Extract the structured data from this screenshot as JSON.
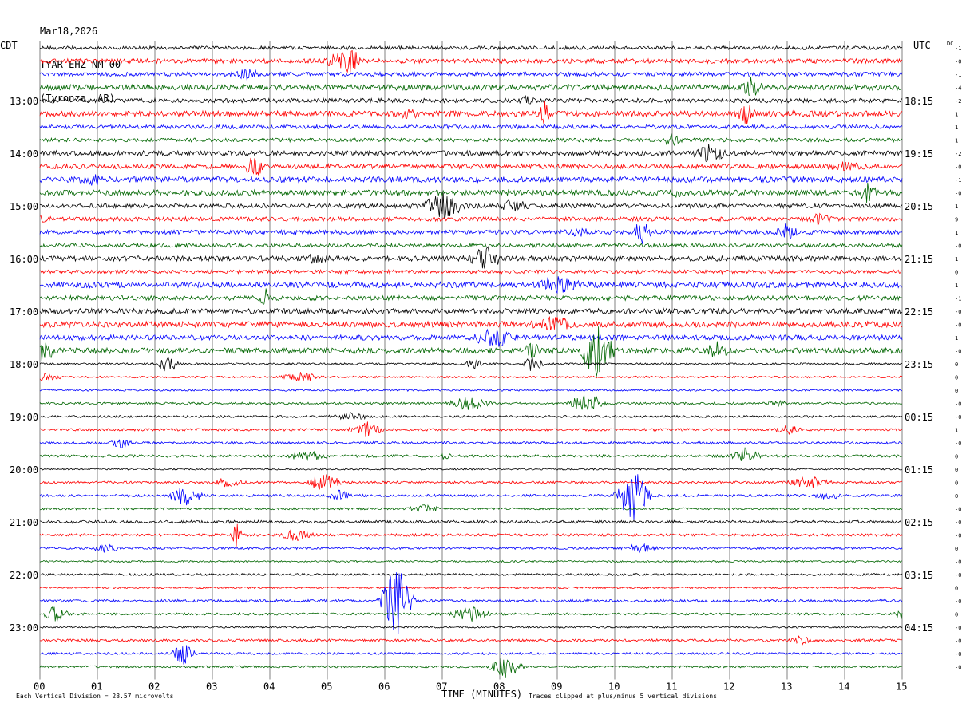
{
  "header": {
    "date": "Mar18,2026",
    "station": "TYAR EHZ NM 00",
    "location": "(Tyronza, AR)"
  },
  "axes": {
    "left_tz": "CDT",
    "right_tz": "UTC",
    "right_top_tag": "DC",
    "xlabel": "TIME (MINUTES)",
    "footer_left": "Each Vertical Division =   28.57 microvolts",
    "footer_right": "Traces clipped at plus/minus 5 vertical divisions"
  },
  "colors": {
    "series": [
      "#000000",
      "#ff0000",
      "#0000ff",
      "#006600"
    ],
    "grid": "#808080"
  },
  "chart_data": {
    "type": "helicorder",
    "x_ticks": [
      "00",
      "01",
      "02",
      "03",
      "04",
      "05",
      "06",
      "07",
      "08",
      "09",
      "10",
      "11",
      "12",
      "13",
      "14",
      "15"
    ],
    "xlim": [
      0,
      15
    ],
    "minutes_per_line": 15,
    "line_count": 48,
    "left_hour_labels": [
      "13:00",
      "14:00",
      "15:00",
      "16:00",
      "17:00",
      "18:00",
      "19:00",
      "20:00",
      "21:00",
      "22:00",
      "23:00"
    ],
    "right_hour_labels": [
      "18:15",
      "19:15",
      "20:15",
      "21:15",
      "22:15",
      "23:15",
      "00:15",
      "01:15",
      "02:15",
      "03:15",
      "04:15"
    ],
    "dc_offsets": [
      "-1",
      "-0",
      "-1",
      "-4",
      "-2",
      "1",
      "1",
      "1",
      "-2",
      "-0",
      "-1",
      "-0",
      "1",
      "9",
      "1",
      "-0",
      "1",
      "0",
      "1",
      "-1",
      "-0",
      "-0",
      "1",
      "-0",
      "0",
      "0",
      "0",
      "-0",
      "-0",
      "1",
      "-0",
      "0",
      "0",
      "0",
      "0",
      "-0",
      "-0",
      "-0",
      "0",
      "-0",
      "-0",
      "0",
      "-0",
      "0",
      "-0",
      "-0",
      "-0",
      "-0"
    ],
    "notable_events": [
      {
        "line": 23,
        "minute": 9.7,
        "amp": 4
      },
      {
        "line": 42,
        "minute": 6.2,
        "amp": 5
      },
      {
        "line": 34,
        "minute": 10.3,
        "amp": 4
      }
    ]
  }
}
